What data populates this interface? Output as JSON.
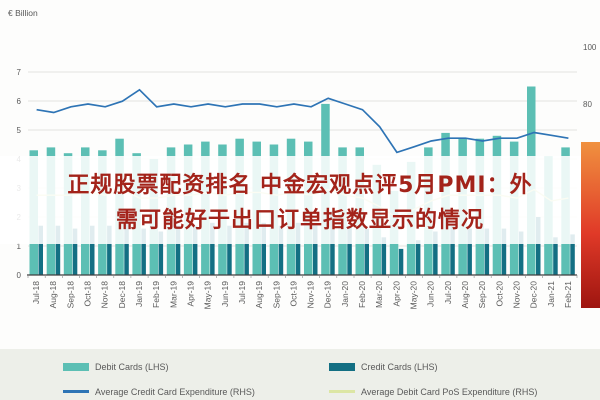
{
  "overlay": {
    "line1": "正规股票配资排名  中金宏观点评5月PMI：外",
    "line2": "需可能好于出口订单指数显示的情况",
    "text_color": "#a3231a"
  },
  "decor": {
    "side_gradient": [
      "#f0913f",
      "#e03a28",
      "#9e1510"
    ],
    "legend_background": "#edefe9"
  },
  "chart_data": {
    "type": "bar",
    "subtype": "combo-bar-line",
    "title": "",
    "ylabel_left": "€ Billion",
    "left_axis": {
      "min": 0,
      "max": 7,
      "ticks": [
        0,
        1,
        2,
        3,
        4,
        5,
        6,
        7
      ]
    },
    "right_axis": {
      "min": 20,
      "max": 100,
      "ticks": [
        20,
        40,
        60,
        80,
        100
      ]
    },
    "grid": "horizontal",
    "legend_position": "bottom",
    "categories": [
      "Jul-18",
      "Aug-18",
      "Sep-18",
      "Oct-18",
      "Nov-18",
      "Dec-18",
      "Jan-19",
      "Feb-19",
      "Mar-19",
      "Apr-19",
      "May-19",
      "Jun-19",
      "Jul-19",
      "Aug-19",
      "Sep-19",
      "Oct-19",
      "Nov-19",
      "Dec-19",
      "Jan-20",
      "Feb-20",
      "Mar-20",
      "Apr-20",
      "May-20",
      "Jun-20",
      "Jul-20",
      "Aug-20",
      "Sep-20",
      "Oct-20",
      "Nov-20",
      "Dec-20",
      "Jan-21",
      "Feb-21"
    ],
    "series": [
      {
        "name": "Debit Cards (LHS)",
        "kind": "bar",
        "axis": "left",
        "color": "#5cbfb4",
        "values": [
          4.3,
          4.4,
          4.2,
          4.4,
          4.3,
          4.7,
          4.2,
          4.0,
          4.4,
          4.5,
          4.6,
          4.5,
          4.7,
          4.6,
          4.5,
          4.7,
          4.6,
          5.9,
          4.4,
          4.4,
          3.8,
          2.9,
          3.9,
          4.4,
          4.9,
          4.7,
          4.7,
          4.8,
          4.6,
          6.5,
          4.1,
          4.4
        ]
      },
      {
        "name": "Credit Cards (LHS)",
        "kind": "bar",
        "axis": "left",
        "color": "#136f83",
        "values": [
          1.7,
          1.7,
          1.6,
          1.7,
          1.7,
          1.9,
          1.6,
          1.5,
          1.7,
          1.7,
          1.8,
          1.7,
          1.8,
          1.8,
          1.7,
          1.8,
          1.8,
          2.2,
          1.7,
          1.6,
          1.3,
          0.9,
          1.2,
          1.5,
          1.7,
          1.6,
          1.6,
          1.6,
          1.5,
          2.0,
          1.3,
          1.4
        ]
      },
      {
        "name": "Average Credit Card Expenditure (RHS)",
        "kind": "line",
        "axis": "right",
        "color": "#2e74b5",
        "values": [
          78,
          77,
          79,
          80,
          79,
          81,
          85,
          79,
          80,
          79,
          80,
          79,
          80,
          80,
          79,
          80,
          79,
          82,
          80,
          78,
          72,
          63,
          65,
          67,
          68,
          68,
          67,
          68,
          68,
          70,
          69,
          68
        ]
      },
      {
        "name": "Average Debit Card PoS Expenditure (RHS)",
        "kind": "line",
        "axis": "right",
        "color": "#dce6a4",
        "values": [
          48,
          48,
          48,
          49,
          48,
          50,
          47,
          47,
          48,
          48,
          49,
          48,
          49,
          49,
          48,
          49,
          48,
          50,
          48,
          47,
          44,
          40,
          43,
          46,
          48,
          48,
          48,
          48,
          47,
          50,
          46,
          47
        ]
      }
    ]
  }
}
